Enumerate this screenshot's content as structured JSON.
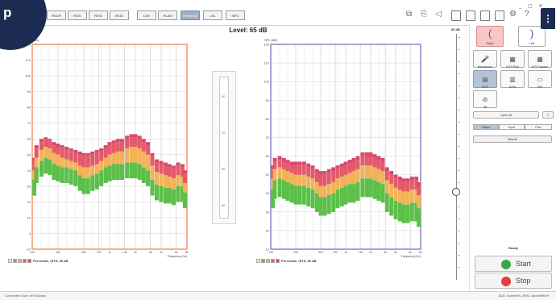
{
  "logo": {
    "letter": "p",
    "more_glyph": "⋮"
  },
  "window_controls": "_ ▢ ✕",
  "toolbar": {
    "tabs": [
      "REUR",
      "REIG",
      "REIG",
      "REIG",
      "LGR",
      "RLAM",
      "Percentile",
      "LSL",
      "MPO"
    ],
    "active_tab_index": 6
  },
  "level_title": "Level: 65 dB",
  "charts": {
    "y_axis_label": "SPL (dB)",
    "x_axis_label": "Frequency (Hz)",
    "legend_label": "Percentile, ISTS, 65 dB",
    "y_ticks": [
      -10,
      0,
      10,
      20,
      30,
      40,
      50,
      60,
      70,
      80,
      90,
      100,
      110,
      120
    ],
    "x_ticks": [
      "125",
      "250",
      "500",
      "750",
      "1k",
      "1.5k",
      "2k",
      "3k",
      "4k",
      "6k",
      "8k"
    ],
    "left_color": "#f47a4a",
    "right_color": "#6a68b8"
  },
  "chart_data": [
    {
      "type": "bar",
      "ear": "right",
      "title": "",
      "ylabel": "SPL (dB)",
      "xlabel": "Frequency (Hz)",
      "ylim": [
        -10,
        120
      ],
      "x_scale": "log",
      "xlim": [
        125,
        8000
      ],
      "x": [
        125,
        140,
        160,
        180,
        200,
        224,
        250,
        280,
        315,
        355,
        400,
        450,
        500,
        560,
        630,
        710,
        800,
        900,
        1000,
        1120,
        1250,
        1400,
        1600,
        1800,
        2000,
        2240,
        2500,
        2800,
        3150,
        3550,
        4000,
        4500,
        5000,
        5600,
        6300,
        7100,
        8000
      ],
      "series": [
        {
          "name": "p30",
          "values": [
            34,
            42,
            46,
            48,
            47,
            44,
            43,
            42,
            42,
            41,
            40,
            37,
            35,
            35,
            37,
            38,
            40,
            42,
            43,
            44,
            44,
            44,
            45,
            45,
            45,
            44,
            42,
            40,
            34,
            31,
            30,
            29,
            29,
            28,
            30,
            30,
            26
          ]
        },
        {
          "name": "p65",
          "values": [
            40,
            48,
            53,
            55,
            54,
            51,
            50,
            48,
            47,
            46,
            45,
            43,
            42,
            42,
            43,
            44,
            46,
            48,
            50,
            51,
            52,
            52,
            54,
            55,
            55,
            54,
            52,
            50,
            43,
            39,
            38,
            37,
            36,
            35,
            37,
            36,
            32
          ]
        },
        {
          "name": "p90",
          "values": [
            46,
            54,
            58,
            60,
            59,
            56,
            55,
            54,
            53,
            52,
            51,
            50,
            49,
            49,
            50,
            51,
            52,
            54,
            56,
            57,
            58,
            58,
            60,
            61,
            61,
            60,
            58,
            56,
            49,
            45,
            44,
            43,
            42,
            41,
            43,
            42,
            38
          ]
        },
        {
          "name": "p99",
          "values": [
            48,
            56,
            60,
            61,
            60,
            58,
            57,
            56,
            55,
            54,
            53,
            52,
            51,
            51,
            52,
            53,
            54,
            56,
            58,
            59,
            60,
            60,
            62,
            63,
            63,
            62,
            60,
            58,
            51,
            47,
            46,
            45,
            44,
            43,
            45,
            44,
            40
          ]
        }
      ]
    },
    {
      "type": "bar",
      "ear": "left",
      "title": "",
      "ylabel": "SPL (dB)",
      "xlabel": "Frequency (Hz)",
      "ylim": [
        10,
        120
      ],
      "x_scale": "log",
      "xlim": [
        125,
        8000
      ],
      "x": [
        125,
        140,
        160,
        180,
        200,
        224,
        250,
        280,
        315,
        355,
        400,
        450,
        500,
        560,
        630,
        710,
        800,
        900,
        1000,
        1120,
        1250,
        1400,
        1600,
        1800,
        2000,
        2240,
        2500,
        2800,
        3150,
        3550,
        4000,
        4500,
        5000,
        5600,
        6300,
        7100,
        8000
      ],
      "series": [
        {
          "name": "p30",
          "values": [
            42,
            47,
            48,
            47,
            46,
            45,
            44,
            44,
            44,
            43,
            42,
            40,
            38,
            38,
            39,
            40,
            42,
            43,
            44,
            45,
            45,
            46,
            48,
            48,
            48,
            47,
            46,
            45,
            40,
            38,
            36,
            35,
            34,
            34,
            35,
            35,
            32
          ]
        },
        {
          "name": "p65",
          "values": [
            48,
            53,
            54,
            53,
            52,
            51,
            50,
            50,
            50,
            49,
            48,
            46,
            44,
            44,
            45,
            46,
            48,
            49,
            50,
            51,
            52,
            53,
            55,
            55,
            55,
            54,
            53,
            52,
            47,
            45,
            43,
            42,
            41,
            41,
            42,
            42,
            39
          ]
        },
        {
          "name": "p90",
          "values": [
            53,
            57,
            58,
            57,
            56,
            55,
            55,
            55,
            55,
            54,
            53,
            51,
            50,
            50,
            51,
            52,
            53,
            54,
            55,
            56,
            57,
            58,
            60,
            60,
            60,
            59,
            58,
            57,
            52,
            50,
            48,
            47,
            46,
            46,
            47,
            47,
            44
          ]
        },
        {
          "name": "p99",
          "values": [
            55,
            59,
            60,
            59,
            58,
            57,
            57,
            57,
            57,
            56,
            55,
            53,
            52,
            52,
            53,
            54,
            55,
            56,
            57,
            58,
            59,
            60,
            62,
            62,
            62,
            61,
            60,
            59,
            54,
            52,
            50,
            49,
            48,
            48,
            49,
            49,
            46
          ]
        }
      ]
    }
  ],
  "mid_level": {
    "ticks": [
      90,
      70,
      50,
      30
    ]
  },
  "slider": {
    "label": "65 dB",
    "value_db": 65
  },
  "ears": [
    {
      "label": "Right",
      "glyph": "("
    },
    {
      "label": "Left",
      "glyph": ")"
    }
  ],
  "sources": [
    {
      "label": "Microphone",
      "glyph": "🎤"
    },
    {
      "label": "ISTS Pink",
      "glyph": "▦"
    },
    {
      "label": "ISTS Speech",
      "glyph": "▦"
    },
    {
      "label": "ISTS",
      "glyph": "▤"
    },
    {
      "label": "ICRA",
      "glyph": "▥"
    },
    {
      "label": "File",
      "glyph": "▭"
    },
    {
      "label": "Off",
      "glyph": "⊘"
    }
  ],
  "open_fit_label": "Open fit",
  "filter_glyph": "▽",
  "segments": [
    "Output",
    "Input",
    "Prev"
  ],
  "result_label": "Result",
  "status_label": "Ready",
  "start_label": "Start",
  "stop_label": "Stop",
  "statusbar": {
    "left": "Connected   User: MS Wizard",
    "right": "AUD, AurealHS,  REM, AurealREM+"
  },
  "colors": {
    "p30": "#5cbf4a",
    "p65": "#f1b35a",
    "p90": "#e35b6b",
    "p99": "#d84a6f",
    "start_icon": "#3aa84a",
    "stop_icon": "#e04040"
  }
}
